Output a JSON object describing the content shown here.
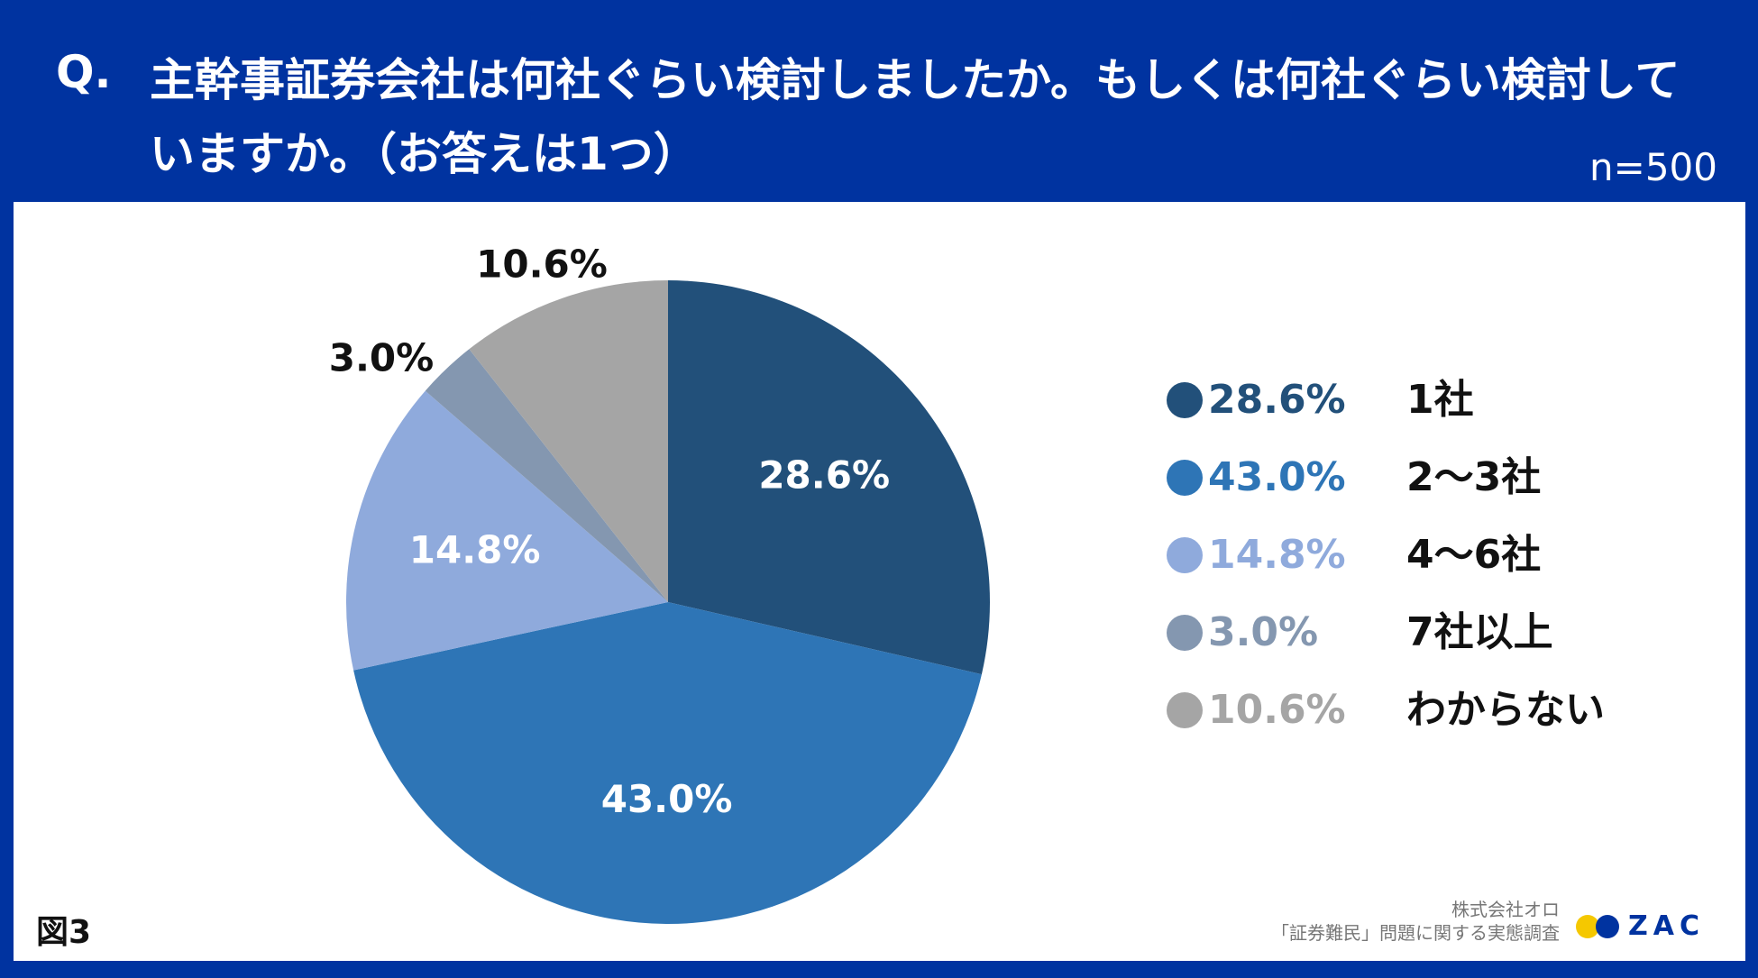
{
  "header": {
    "q_mark": "Q.",
    "question": "主幹事証券会社は何社ぐらい検討しましたか。もしくは何社ぐらい検討していますか。（お答えは1つ）",
    "n_label": "n=500"
  },
  "chart_data": {
    "type": "pie",
    "title": "主幹事証券会社は何社ぐらい検討しましたか。もしくは何社ぐらい検討していますか。（お答えは1つ）",
    "n": 500,
    "categories": [
      "1社",
      "2〜3社",
      "4〜6社",
      "7社以上",
      "わからない"
    ],
    "values": [
      28.6,
      43.0,
      14.8,
      3.0,
      10.6
    ],
    "labels": [
      "28.6%",
      "43.0%",
      "14.8%",
      "3.0%",
      "10.6%"
    ],
    "colors": [
      "#22507A",
      "#2E75B6",
      "#8FAADC",
      "#8497B0",
      "#A5A5A5"
    ],
    "start_angle": "12 o'clock",
    "direction": "clockwise",
    "legend_position": "right"
  },
  "figure_label": "図3",
  "source": {
    "company": "株式会社オロ",
    "survey": "「証券難民」問題に関する実態調査"
  },
  "logo": {
    "text": "ZAC"
  }
}
